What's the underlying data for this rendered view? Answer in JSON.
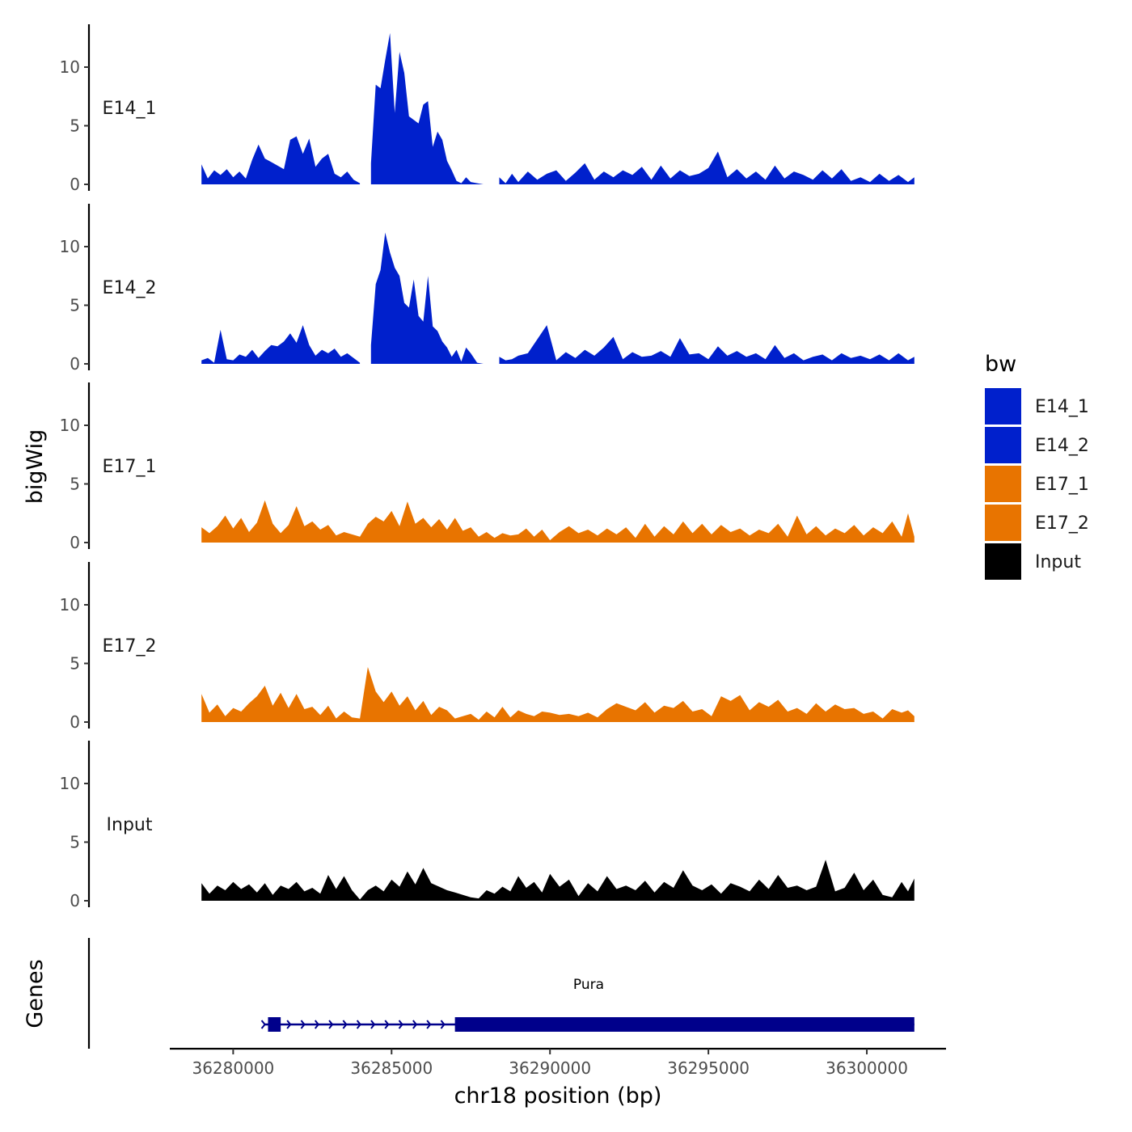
{
  "chart_data": {
    "type": "area",
    "ylabel": "bigWig",
    "xlabel": "chr18 position (bp)",
    "genes_label": "Genes",
    "xlim": [
      36278000,
      36302500
    ],
    "ylim": [
      0,
      13.5
    ],
    "x_ticks": [
      36280000,
      36285000,
      36290000,
      36295000,
      36300000
    ],
    "x_tick_labels": [
      "36280000",
      "36285000",
      "36290000",
      "36295000",
      "36300000"
    ],
    "y_ticks": [
      0,
      5,
      10
    ],
    "y_tick_labels": [
      "0",
      "5",
      "10"
    ],
    "legend": {
      "title": "bw",
      "entries": [
        {
          "name": "E14_1",
          "color": "#0020CC"
        },
        {
          "name": "E14_2",
          "color": "#0020CC"
        },
        {
          "name": "E17_1",
          "color": "#E87400"
        },
        {
          "name": "E17_2",
          "color": "#E87400"
        },
        {
          "name": "Input",
          "color": "#000000"
        }
      ]
    },
    "series": [
      {
        "name": "E14_1",
        "color": "#0020CC",
        "x": [
          36279000,
          36279200,
          36279400,
          36279600,
          36279800,
          36280000,
          36280200,
          36280400,
          36280600,
          36280800,
          36281000,
          36281200,
          36281400,
          36281600,
          36281800,
          36282000,
          36282200,
          36282400,
          36282600,
          36282800,
          36283000,
          36283200,
          36283400,
          36283600,
          36283800,
          36284000,
          null,
          36284350,
          36284500,
          36284650,
          36284800,
          36284950,
          36285100,
          36285250,
          36285400,
          36285550,
          36285700,
          36285850,
          36286000,
          36286150,
          36286300,
          36286450,
          36286600,
          36286750,
          36286900,
          36287050,
          36287200,
          36287350,
          36287500,
          36287700,
          36287900,
          null,
          36288400,
          36288600,
          36288800,
          36289000,
          36289300,
          36289600,
          36289900,
          36290200,
          36290500,
          36290800,
          36291100,
          36291400,
          36291700,
          36292000,
          36292300,
          36292600,
          36292900,
          36293200,
          36293500,
          36293800,
          36294100,
          36294400,
          36294700,
          36295000,
          36295300,
          36295600,
          36295900,
          36296200,
          36296500,
          36296800,
          36297100,
          36297400,
          36297700,
          36298000,
          36298300,
          36298600,
          36298900,
          36299200,
          36299500,
          36299800,
          36300100,
          36300400,
          36300700,
          36301000,
          36301300,
          36301500
        ],
        "values": [
          1.7,
          0.5,
          1.2,
          0.8,
          1.3,
          0.6,
          1.1,
          0.5,
          2.1,
          3.4,
          2.2,
          1.9,
          1.6,
          1.3,
          3.8,
          4.1,
          2.6,
          3.9,
          1.5,
          2.2,
          2.6,
          0.9,
          0.6,
          1.1,
          0.4,
          0.1,
          null,
          1.8,
          8.5,
          8.2,
          10.6,
          12.9,
          6.1,
          11.3,
          9.5,
          5.8,
          5.5,
          5.2,
          6.8,
          7.1,
          3.2,
          4.5,
          3.8,
          2.0,
          1.2,
          0.3,
          0.1,
          0.6,
          0.2,
          0.1,
          0.0,
          null,
          0.6,
          0.1,
          0.9,
          0.2,
          1.1,
          0.4,
          0.9,
          1.2,
          0.3,
          1.0,
          1.8,
          0.4,
          1.1,
          0.6,
          1.2,
          0.8,
          1.5,
          0.4,
          1.6,
          0.5,
          1.2,
          0.7,
          0.9,
          1.4,
          2.8,
          0.6,
          1.3,
          0.5,
          1.1,
          0.4,
          1.6,
          0.5,
          1.1,
          0.8,
          0.4,
          1.2,
          0.5,
          1.3,
          0.3,
          0.6,
          0.2,
          0.9,
          0.3,
          0.8,
          0.2,
          0.6
        ]
      },
      {
        "name": "E14_2",
        "color": "#0020CC",
        "x": [
          36279000,
          36279200,
          36279400,
          36279600,
          36279800,
          36280000,
          36280200,
          36280400,
          36280600,
          36280800,
          36281000,
          36281200,
          36281400,
          36281600,
          36281800,
          36282000,
          36282200,
          36282400,
          36282600,
          36282800,
          36283000,
          36283200,
          36283400,
          36283600,
          36283800,
          36284000,
          null,
          36284350,
          36284500,
          36284650,
          36284800,
          36284950,
          36285100,
          36285250,
          36285400,
          36285550,
          36285700,
          36285850,
          36286000,
          36286150,
          36286300,
          36286450,
          36286600,
          36286750,
          36286900,
          36287050,
          36287200,
          36287350,
          36287500,
          36287700,
          36287900,
          null,
          36288400,
          36288600,
          36288800,
          36289000,
          36289300,
          36289600,
          36289900,
          36290200,
          36290500,
          36290800,
          36291100,
          36291400,
          36291700,
          36292000,
          36292300,
          36292600,
          36292900,
          36293200,
          36293500,
          36293800,
          36294100,
          36294400,
          36294700,
          36295000,
          36295300,
          36295600,
          36295900,
          36296200,
          36296500,
          36296800,
          36297100,
          36297400,
          36297700,
          36298000,
          36298300,
          36298600,
          36298900,
          36299200,
          36299500,
          36299800,
          36300100,
          36300400,
          36300700,
          36301000,
          36301300,
          36301500
        ],
        "values": [
          0.3,
          0.5,
          0.1,
          2.9,
          0.4,
          0.3,
          0.8,
          0.6,
          1.2,
          0.5,
          1.1,
          1.6,
          1.5,
          1.9,
          2.6,
          1.8,
          3.3,
          1.6,
          0.7,
          1.2,
          0.9,
          1.3,
          0.6,
          0.9,
          0.5,
          0.1,
          null,
          1.6,
          6.8,
          8.0,
          11.2,
          9.5,
          8.2,
          7.5,
          5.2,
          4.8,
          7.2,
          4.1,
          3.6,
          7.5,
          3.2,
          2.8,
          1.9,
          1.4,
          0.6,
          1.2,
          0.2,
          1.4,
          0.9,
          0.1,
          0.0,
          null,
          0.6,
          0.3,
          0.4,
          0.7,
          0.9,
          2.1,
          3.3,
          0.3,
          1.0,
          0.5,
          1.2,
          0.7,
          1.4,
          2.3,
          0.4,
          1.0,
          0.6,
          0.7,
          1.1,
          0.6,
          2.2,
          0.8,
          0.9,
          0.4,
          1.5,
          0.7,
          1.1,
          0.6,
          0.9,
          0.4,
          1.6,
          0.5,
          0.9,
          0.3,
          0.6,
          0.8,
          0.3,
          0.9,
          0.5,
          0.7,
          0.4,
          0.8,
          0.3,
          0.9,
          0.3,
          0.6
        ]
      },
      {
        "name": "E17_1",
        "color": "#E87400",
        "x": [
          36279000,
          36279250,
          36279500,
          36279750,
          36280000,
          36280250,
          36280500,
          36280750,
          36281000,
          36281250,
          36281500,
          36281750,
          36282000,
          36282250,
          36282500,
          36282750,
          36283000,
          36283250,
          36283500,
          36283750,
          36284000,
          36284250,
          36284500,
          36284750,
          36285000,
          36285250,
          36285500,
          36285750,
          36286000,
          36286250,
          36286500,
          36286750,
          36287000,
          36287250,
          36287500,
          36287750,
          36288000,
          36288250,
          36288500,
          36288750,
          36289000,
          36289250,
          36289500,
          36289750,
          36290000,
          36290300,
          36290600,
          36290900,
          36291200,
          36291500,
          36291800,
          36292100,
          36292400,
          36292700,
          36293000,
          36293300,
          36293600,
          36293900,
          36294200,
          36294500,
          36294800,
          36295100,
          36295400,
          36295700,
          36296000,
          36296300,
          36296600,
          36296900,
          36297200,
          36297500,
          36297800,
          36298100,
          36298400,
          36298700,
          36299000,
          36299300,
          36299600,
          36299900,
          36300200,
          36300500,
          36300800,
          36301100,
          36301300,
          36301500
        ],
        "values": [
          1.3,
          0.8,
          1.4,
          2.3,
          1.2,
          2.1,
          0.9,
          1.7,
          3.6,
          1.6,
          0.8,
          1.5,
          3.1,
          1.4,
          1.8,
          1.1,
          1.5,
          0.6,
          0.9,
          0.7,
          0.5,
          1.6,
          2.2,
          1.8,
          2.7,
          1.4,
          3.5,
          1.6,
          2.1,
          1.3,
          2.0,
          1.1,
          2.1,
          1.0,
          1.3,
          0.5,
          0.9,
          0.4,
          0.8,
          0.6,
          0.7,
          1.2,
          0.5,
          1.1,
          0.2,
          0.9,
          1.4,
          0.8,
          1.1,
          0.6,
          1.2,
          0.7,
          1.3,
          0.4,
          1.6,
          0.5,
          1.4,
          0.7,
          1.8,
          0.8,
          1.6,
          0.7,
          1.5,
          0.9,
          1.2,
          0.6,
          1.1,
          0.8,
          1.6,
          0.5,
          2.3,
          0.7,
          1.4,
          0.6,
          1.2,
          0.8,
          1.5,
          0.6,
          1.3,
          0.8,
          1.8,
          0.5,
          2.5,
          0.5
        ]
      },
      {
        "name": "E17_2",
        "color": "#E87400",
        "x": [
          36279000,
          36279250,
          36279500,
          36279750,
          36280000,
          36280250,
          36280500,
          36280750,
          36281000,
          36281250,
          36281500,
          36281750,
          36282000,
          36282250,
          36282500,
          36282750,
          36283000,
          36283250,
          36283500,
          36283750,
          36284000,
          36284250,
          36284500,
          36284750,
          36285000,
          36285250,
          36285500,
          36285750,
          36286000,
          36286250,
          36286500,
          36286750,
          36287000,
          36287250,
          36287500,
          36287750,
          36288000,
          36288250,
          36288500,
          36288750,
          36289000,
          36289250,
          36289500,
          36289750,
          36290000,
          36290300,
          36290600,
          36290900,
          36291200,
          36291500,
          36291800,
          36292100,
          36292400,
          36292700,
          36293000,
          36293300,
          36293600,
          36293900,
          36294200,
          36294500,
          36294800,
          36295100,
          36295400,
          36295700,
          36296000,
          36296300,
          36296600,
          36296900,
          36297200,
          36297500,
          36297800,
          36298100,
          36298400,
          36298700,
          36299000,
          36299300,
          36299600,
          36299900,
          36300200,
          36300500,
          36300800,
          36301100,
          36301300,
          36301500
        ],
        "values": [
          2.4,
          0.8,
          1.5,
          0.5,
          1.2,
          0.9,
          1.6,
          2.2,
          3.1,
          1.4,
          2.5,
          1.2,
          2.4,
          1.1,
          1.3,
          0.6,
          1.4,
          0.3,
          0.9,
          0.4,
          0.3,
          4.7,
          2.6,
          1.7,
          2.6,
          1.4,
          2.2,
          1.0,
          1.8,
          0.6,
          1.3,
          1.0,
          0.3,
          0.5,
          0.7,
          0.2,
          0.9,
          0.4,
          1.3,
          0.4,
          1.0,
          0.7,
          0.5,
          0.9,
          0.8,
          0.6,
          0.7,
          0.5,
          0.8,
          0.4,
          1.1,
          1.6,
          1.3,
          1.0,
          1.7,
          0.8,
          1.4,
          1.2,
          1.8,
          0.9,
          1.1,
          0.5,
          2.2,
          1.8,
          2.3,
          1.0,
          1.7,
          1.3,
          1.9,
          0.9,
          1.2,
          0.7,
          1.6,
          0.9,
          1.5,
          1.1,
          1.2,
          0.7,
          0.9,
          0.3,
          1.1,
          0.8,
          1.0,
          0.5
        ]
      },
      {
        "name": "Input",
        "color": "#000000",
        "x": [
          36279000,
          36279250,
          36279500,
          36279750,
          36280000,
          36280250,
          36280500,
          36280750,
          36281000,
          36281250,
          36281500,
          36281750,
          36282000,
          36282250,
          36282500,
          36282750,
          36283000,
          36283250,
          36283500,
          36283750,
          36284000,
          36284250,
          36284500,
          36284750,
          36285000,
          36285250,
          36285500,
          36285750,
          36286000,
          36286250,
          36286500,
          36286750,
          36287000,
          36287250,
          36287500,
          36287750,
          36288000,
          36288250,
          36288500,
          36288750,
          36289000,
          36289250,
          36289500,
          36289750,
          36290000,
          36290300,
          36290600,
          36290900,
          36291200,
          36291500,
          36291800,
          36292100,
          36292400,
          36292700,
          36293000,
          36293300,
          36293600,
          36293900,
          36294200,
          36294500,
          36294800,
          36295100,
          36295400,
          36295700,
          36296000,
          36296300,
          36296600,
          36296900,
          36297200,
          36297500,
          36297800,
          36298100,
          36298400,
          36298700,
          36299000,
          36299300,
          36299600,
          36299900,
          36300200,
          36300500,
          36300800,
          36301100,
          36301300,
          36301500
        ],
        "values": [
          1.5,
          0.6,
          1.3,
          0.9,
          1.6,
          1.0,
          1.4,
          0.7,
          1.5,
          0.5,
          1.3,
          1.0,
          1.6,
          0.8,
          1.1,
          0.6,
          2.2,
          1.0,
          2.1,
          0.9,
          0.1,
          0.9,
          1.3,
          0.8,
          1.8,
          1.2,
          2.5,
          1.4,
          2.8,
          1.5,
          1.2,
          0.9,
          0.7,
          0.5,
          0.3,
          0.2,
          0.9,
          0.6,
          1.2,
          0.8,
          2.1,
          1.1,
          1.6,
          0.7,
          2.3,
          1.2,
          1.8,
          0.4,
          1.5,
          0.8,
          2.1,
          1.0,
          1.3,
          0.9,
          1.7,
          0.7,
          1.6,
          1.1,
          2.6,
          1.3,
          0.9,
          1.4,
          0.6,
          1.5,
          1.2,
          0.8,
          1.8,
          1.0,
          2.2,
          1.1,
          1.3,
          0.9,
          1.2,
          3.5,
          0.8,
          1.1,
          2.4,
          0.9,
          1.8,
          0.5,
          0.3,
          1.6,
          0.8,
          1.9
        ]
      }
    ],
    "genes": [
      {
        "name": "Pura",
        "start": 36281000,
        "end": 36301500,
        "strand": "+",
        "exons": [
          [
            36281100,
            36281500
          ],
          [
            36287000,
            36301500
          ]
        ]
      }
    ]
  }
}
